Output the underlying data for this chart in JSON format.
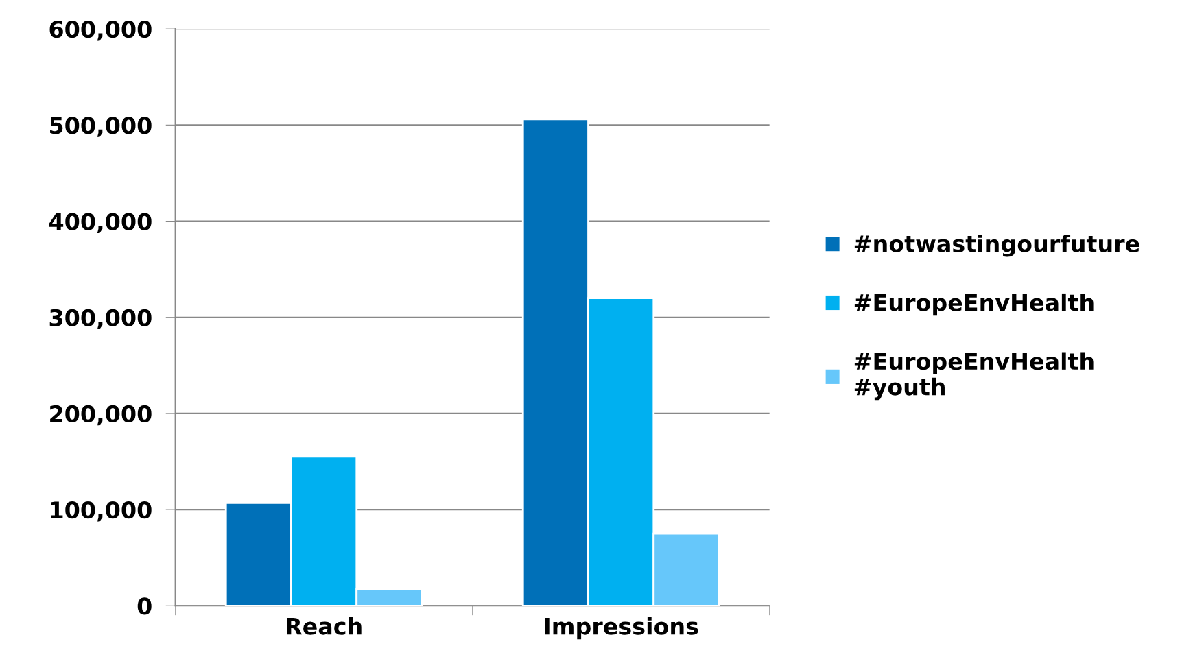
{
  "chart_data": {
    "type": "bar",
    "categories": [
      "Reach",
      "Impressions"
    ],
    "series": [
      {
        "name": "#notwastingourfuture",
        "color": "#0070b8",
        "values": [
          107000,
          506000
        ]
      },
      {
        "name": "#EuropeEnvHealth",
        "color": "#00b0f0",
        "values": [
          155000,
          320000
        ]
      },
      {
        "name": "#EuropeEnvHealth\n#youth",
        "color": "#66c7fa",
        "values": [
          17000,
          75000
        ]
      }
    ],
    "ylim": [
      0,
      600000
    ],
    "yticks": [
      {
        "value": 0,
        "label": "0"
      },
      {
        "value": 100000,
        "label": "100,000"
      },
      {
        "value": 200000,
        "label": "200,000"
      },
      {
        "value": 300000,
        "label": "300,000"
      },
      {
        "value": 400000,
        "label": "400,000"
      },
      {
        "value": 500000,
        "label": "500,000"
      },
      {
        "value": 600000,
        "label": "600,000"
      }
    ],
    "grid": "y",
    "legend": "right"
  }
}
